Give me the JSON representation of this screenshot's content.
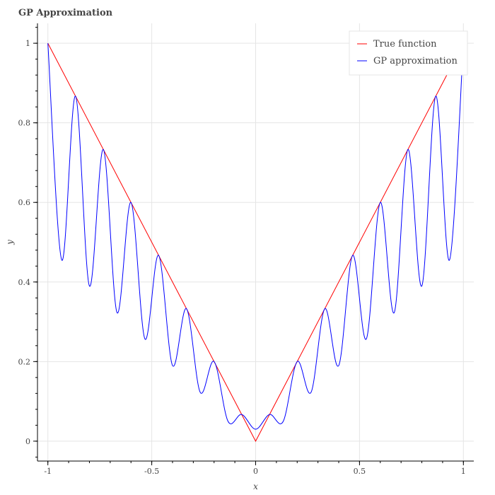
{
  "chart_data": {
    "type": "line",
    "title": "GP Approximation",
    "xlabel": "x",
    "ylabel": "y",
    "xlim": [
      -1.05,
      1.05
    ],
    "ylim": [
      -0.05,
      1.05
    ],
    "x_ticks": [
      -1,
      -0.5,
      0,
      0.5,
      1
    ],
    "x_tick_labels": [
      "-1",
      "-0.5",
      "0",
      "0.5",
      "1"
    ],
    "y_ticks": [
      0,
      0.2,
      0.4,
      0.6,
      0.8,
      1
    ],
    "y_tick_labels": [
      "0",
      "0.2",
      "0.4",
      "0.6",
      "0.8",
      "1"
    ],
    "grid": true,
    "legend_position": "top-right",
    "series": [
      {
        "name": "True function",
        "color": "#ff0000",
        "x": [
          -1,
          0,
          1
        ],
        "y": [
          1,
          0,
          1
        ]
      },
      {
        "name": "GP approximation",
        "color": "#0000ff",
        "x": [
          -1,
          -0.933,
          -0.867,
          -0.8,
          -0.733,
          -0.667,
          -0.6,
          -0.533,
          -0.467,
          -0.4,
          -0.333,
          -0.267,
          -0.2,
          -0.133,
          -0.067,
          0,
          0.067,
          0.133,
          0.2,
          0.267,
          0.333,
          0.4,
          0.467,
          0.533,
          0.6,
          0.667,
          0.733,
          0.8,
          0.867,
          0.933,
          1
        ],
        "y": [
          1,
          0.455,
          0.867,
          0.39,
          0.733,
          0.323,
          0.6,
          0.257,
          0.467,
          0.19,
          0.333,
          0.123,
          0.2,
          0.05,
          0.067,
          0.03,
          0.067,
          0.05,
          0.2,
          0.123,
          0.333,
          0.19,
          0.467,
          0.257,
          0.6,
          0.323,
          0.733,
          0.39,
          0.867,
          0.455,
          1
        ]
      }
    ]
  }
}
